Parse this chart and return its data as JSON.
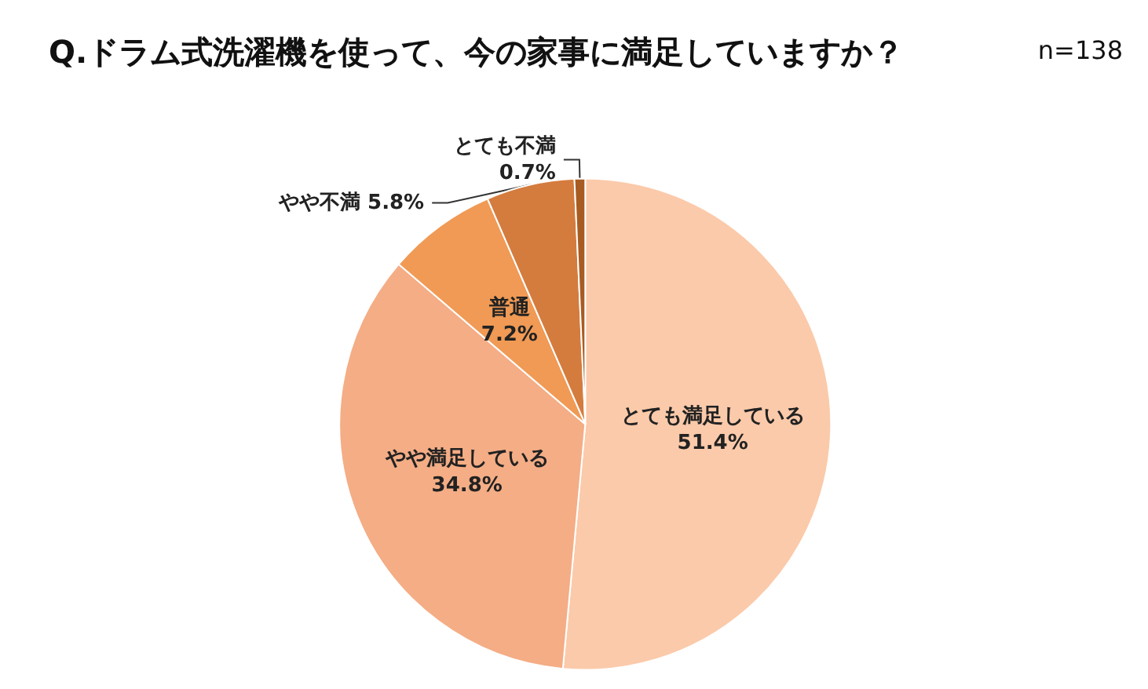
{
  "chart_data": {
    "type": "pie",
    "title": "Q.ドラム式洗濯機を使って、今の家事に満足していますか？",
    "annotations": [
      "n=138"
    ],
    "categories": [
      "とても満足している",
      "やや満足している",
      "普通",
      "やや不満",
      "とても不満"
    ],
    "values": [
      51.4,
      34.8,
      7.2,
      5.8,
      0.7
    ],
    "value_labels": [
      "51.4%",
      "34.8%",
      "7.2%",
      "5.8%",
      "0.7%"
    ],
    "colors": [
      "#fbcaaa",
      "#f4ad85",
      "#f09a55",
      "#d47c3e",
      "#a85c22"
    ],
    "legend": false
  }
}
